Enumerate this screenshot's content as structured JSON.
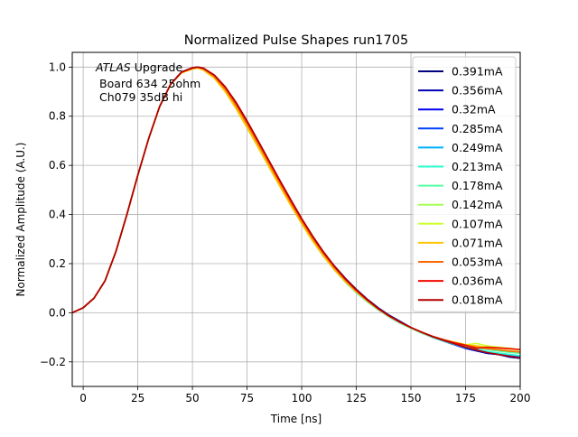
{
  "chart_data": {
    "type": "line",
    "title": "Normalized Pulse Shapes run1705",
    "xlabel": "Time [ns]",
    "ylabel": "Normalized Amplitude (A.U.)",
    "xlim": [
      -5,
      200
    ],
    "ylim": [
      -0.3,
      1.06
    ],
    "xticks": [
      0,
      25,
      50,
      75,
      100,
      125,
      150,
      175,
      200
    ],
    "yticks": [
      -0.2,
      0.0,
      0.2,
      0.4,
      0.6,
      0.8,
      1.0
    ],
    "xtick_labels": [
      "0",
      "25",
      "50",
      "75",
      "100",
      "125",
      "150",
      "175",
      "200"
    ],
    "ytick_labels": [
      "−0.2",
      "0.0",
      "0.2",
      "0.4",
      "0.6",
      "0.8",
      "1.0"
    ],
    "grid": true,
    "legend_position": "upper-right",
    "annotation": {
      "atlas": "ATLAS",
      "line1_rest": " Upgrade",
      "line2": "Board 634 25ohm",
      "line3": "Ch079 35dB hi"
    },
    "x": [
      -5,
      0,
      5,
      10,
      15,
      20,
      25,
      30,
      35,
      40,
      45,
      50,
      52.5,
      55,
      60,
      65,
      70,
      75,
      80,
      85,
      90,
      95,
      100,
      105,
      110,
      115,
      120,
      125,
      130,
      135,
      140,
      145,
      150,
      155,
      160,
      165,
      170,
      175,
      180,
      185,
      190,
      195,
      200
    ],
    "series": [
      {
        "name": "0.391mA",
        "color": "#00007f",
        "values": [
          0.0,
          0.02,
          0.06,
          0.13,
          0.25,
          0.4,
          0.56,
          0.71,
          0.84,
          0.93,
          0.98,
          0.997,
          1.0,
          0.995,
          0.965,
          0.915,
          0.85,
          0.775,
          0.695,
          0.615,
          0.535,
          0.455,
          0.38,
          0.31,
          0.245,
          0.19,
          0.14,
          0.095,
          0.055,
          0.02,
          -0.01,
          -0.035,
          -0.06,
          -0.08,
          -0.1,
          -0.115,
          -0.13,
          -0.145,
          -0.155,
          -0.165,
          -0.17,
          -0.18,
          -0.185
        ]
      },
      {
        "name": "0.356mA",
        "color": "#0000b2",
        "values": [
          0.0,
          0.02,
          0.06,
          0.13,
          0.25,
          0.4,
          0.56,
          0.71,
          0.84,
          0.93,
          0.98,
          0.997,
          1.0,
          0.995,
          0.965,
          0.915,
          0.85,
          0.775,
          0.695,
          0.615,
          0.535,
          0.455,
          0.38,
          0.31,
          0.245,
          0.19,
          0.14,
          0.095,
          0.055,
          0.02,
          -0.01,
          -0.035,
          -0.06,
          -0.08,
          -0.1,
          -0.115,
          -0.13,
          -0.145,
          -0.155,
          -0.165,
          -0.17,
          -0.18,
          -0.185
        ]
      },
      {
        "name": "0.32mA",
        "color": "#0000f1",
        "values": [
          0.0,
          0.02,
          0.06,
          0.13,
          0.25,
          0.4,
          0.56,
          0.71,
          0.84,
          0.93,
          0.98,
          0.996,
          1.0,
          0.993,
          0.962,
          0.91,
          0.843,
          0.767,
          0.688,
          0.607,
          0.526,
          0.447,
          0.372,
          0.302,
          0.238,
          0.182,
          0.132,
          0.088,
          0.049,
          0.015,
          -0.015,
          -0.04,
          -0.062,
          -0.082,
          -0.1,
          -0.115,
          -0.13,
          -0.143,
          -0.153,
          -0.162,
          -0.168,
          -0.175,
          -0.18
        ]
      },
      {
        "name": "0.285mA",
        "color": "#0040ff",
        "values": [
          0.0,
          0.02,
          0.06,
          0.13,
          0.25,
          0.4,
          0.56,
          0.71,
          0.84,
          0.93,
          0.98,
          0.996,
          1.0,
          0.993,
          0.962,
          0.91,
          0.843,
          0.767,
          0.688,
          0.607,
          0.526,
          0.447,
          0.372,
          0.302,
          0.238,
          0.182,
          0.132,
          0.088,
          0.049,
          0.015,
          -0.015,
          -0.04,
          -0.062,
          -0.082,
          -0.1,
          -0.115,
          -0.13,
          -0.143,
          -0.153,
          -0.162,
          -0.168,
          -0.175,
          -0.18
        ]
      },
      {
        "name": "0.249mA",
        "color": "#00b0ff",
        "values": [
          0.0,
          0.02,
          0.06,
          0.13,
          0.25,
          0.4,
          0.56,
          0.71,
          0.84,
          0.93,
          0.98,
          0.996,
          1.0,
          0.992,
          0.96,
          0.907,
          0.838,
          0.76,
          0.68,
          0.598,
          0.517,
          0.438,
          0.363,
          0.293,
          0.23,
          0.174,
          0.125,
          0.082,
          0.045,
          0.012,
          -0.017,
          -0.042,
          -0.063,
          -0.083,
          -0.1,
          -0.115,
          -0.128,
          -0.14,
          -0.15,
          -0.158,
          -0.164,
          -0.17,
          -0.175
        ]
      },
      {
        "name": "0.213mA",
        "color": "#29ffce",
        "values": [
          0.0,
          0.02,
          0.06,
          0.13,
          0.25,
          0.4,
          0.56,
          0.71,
          0.84,
          0.93,
          0.98,
          0.996,
          1.0,
          0.992,
          0.96,
          0.907,
          0.838,
          0.76,
          0.68,
          0.598,
          0.517,
          0.438,
          0.363,
          0.293,
          0.23,
          0.174,
          0.125,
          0.082,
          0.045,
          0.012,
          -0.017,
          -0.042,
          -0.063,
          -0.083,
          -0.1,
          -0.115,
          -0.128,
          -0.14,
          -0.15,
          -0.158,
          -0.164,
          -0.17,
          -0.175
        ]
      },
      {
        "name": "0.178mA",
        "color": "#55ffa3",
        "values": [
          0.0,
          0.02,
          0.06,
          0.13,
          0.25,
          0.4,
          0.56,
          0.71,
          0.84,
          0.93,
          0.978,
          0.994,
          0.998,
          0.99,
          0.957,
          0.903,
          0.834,
          0.757,
          0.677,
          0.596,
          0.516,
          0.438,
          0.363,
          0.293,
          0.23,
          0.175,
          0.126,
          0.084,
          0.047,
          0.014,
          -0.015,
          -0.04,
          -0.062,
          -0.082,
          -0.098,
          -0.112,
          -0.124,
          -0.135,
          -0.143,
          -0.15,
          -0.156,
          -0.161,
          -0.165
        ]
      },
      {
        "name": "0.142mA",
        "color": "#a3ff55",
        "values": [
          0.0,
          0.02,
          0.06,
          0.13,
          0.25,
          0.4,
          0.56,
          0.71,
          0.84,
          0.93,
          0.978,
          0.994,
          0.998,
          0.99,
          0.957,
          0.903,
          0.834,
          0.757,
          0.677,
          0.596,
          0.516,
          0.438,
          0.363,
          0.293,
          0.23,
          0.175,
          0.126,
          0.084,
          0.047,
          0.014,
          -0.015,
          -0.04,
          -0.062,
          -0.082,
          -0.098,
          -0.11,
          -0.12,
          -0.13,
          -0.138,
          -0.145,
          -0.15,
          -0.155,
          -0.158
        ]
      },
      {
        "name": "0.107mA",
        "color": "#ceff29",
        "values": [
          0.0,
          0.02,
          0.06,
          0.13,
          0.25,
          0.4,
          0.56,
          0.71,
          0.84,
          0.93,
          0.977,
          0.992,
          0.996,
          0.988,
          0.955,
          0.9,
          0.83,
          0.753,
          0.674,
          0.594,
          0.514,
          0.437,
          0.363,
          0.293,
          0.23,
          0.175,
          0.127,
          0.085,
          0.048,
          0.015,
          -0.014,
          -0.039,
          -0.061,
          -0.08,
          -0.097,
          -0.11,
          -0.12,
          -0.13,
          -0.125,
          -0.135,
          -0.14,
          -0.145,
          -0.15
        ]
      },
      {
        "name": "0.071mA",
        "color": "#ffc400",
        "values": [
          0.0,
          0.02,
          0.06,
          0.13,
          0.25,
          0.4,
          0.56,
          0.71,
          0.84,
          0.93,
          0.977,
          0.992,
          0.996,
          0.988,
          0.955,
          0.9,
          0.83,
          0.753,
          0.674,
          0.594,
          0.514,
          0.437,
          0.363,
          0.293,
          0.23,
          0.175,
          0.127,
          0.085,
          0.048,
          0.015,
          -0.014,
          -0.039,
          -0.061,
          -0.08,
          -0.097,
          -0.11,
          -0.12,
          -0.13,
          -0.135,
          -0.14,
          -0.143,
          -0.147,
          -0.15
        ]
      },
      {
        "name": "0.053mA",
        "color": "#ff6800",
        "values": [
          0.0,
          0.02,
          0.06,
          0.13,
          0.25,
          0.4,
          0.56,
          0.71,
          0.84,
          0.93,
          0.978,
          0.995,
          0.999,
          0.993,
          0.962,
          0.91,
          0.843,
          0.767,
          0.688,
          0.607,
          0.527,
          0.448,
          0.373,
          0.303,
          0.24,
          0.183,
          0.133,
          0.089,
          0.05,
          0.016,
          -0.014,
          -0.039,
          -0.061,
          -0.08,
          -0.097,
          -0.111,
          -0.123,
          -0.133,
          -0.14,
          -0.146,
          -0.151,
          -0.156,
          -0.16
        ]
      },
      {
        "name": "0.036mA",
        "color": "#f10800",
        "values": [
          0.0,
          0.02,
          0.06,
          0.13,
          0.25,
          0.4,
          0.56,
          0.71,
          0.84,
          0.93,
          0.98,
          0.997,
          1.0,
          0.995,
          0.967,
          0.918,
          0.853,
          0.778,
          0.698,
          0.617,
          0.536,
          0.457,
          0.381,
          0.31,
          0.245,
          0.188,
          0.137,
          0.092,
          0.052,
          0.017,
          -0.013,
          -0.038,
          -0.06,
          -0.079,
          -0.096,
          -0.11,
          -0.122,
          -0.132,
          -0.145,
          -0.14,
          -0.143,
          -0.146,
          -0.15
        ]
      },
      {
        "name": "0.018mA",
        "color": "#b20000",
        "values": [
          0.0,
          0.02,
          0.06,
          0.13,
          0.25,
          0.4,
          0.56,
          0.71,
          0.84,
          0.93,
          0.98,
          0.997,
          1.0,
          0.996,
          0.968,
          0.92,
          0.856,
          0.781,
          0.701,
          0.62,
          0.539,
          0.46,
          0.384,
          0.313,
          0.248,
          0.19,
          0.139,
          0.094,
          0.054,
          0.018,
          -0.012,
          -0.038,
          -0.06,
          -0.08,
          -0.098,
          -0.113,
          -0.127,
          -0.14,
          -0.152,
          -0.162,
          -0.17,
          -0.177,
          -0.183
        ]
      }
    ]
  }
}
